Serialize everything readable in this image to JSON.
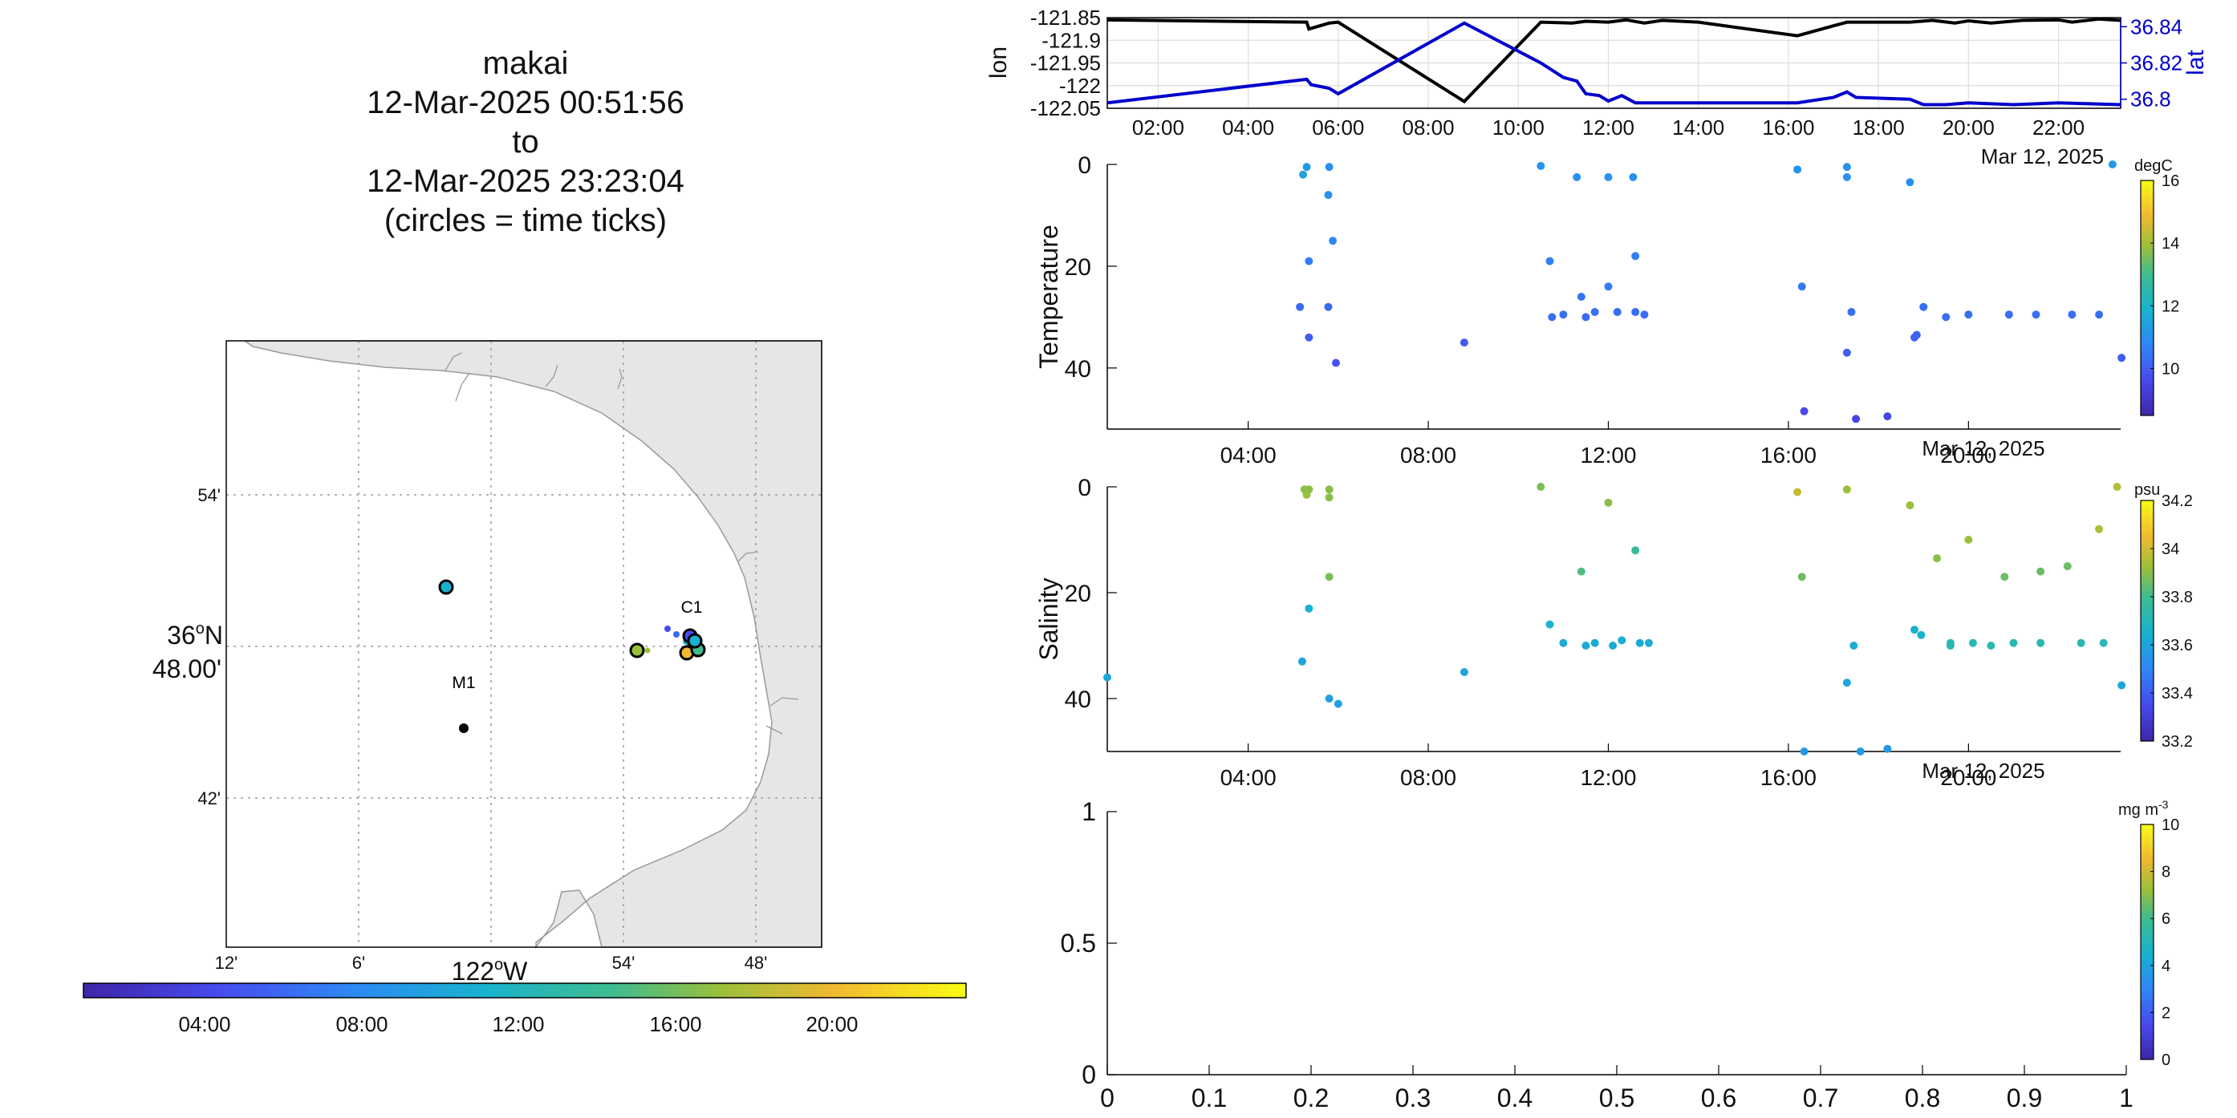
{
  "header": {
    "lines": [
      "makai",
      "12-Mar-2025 00:51:56",
      "to",
      "12-Mar-2025 23:23:04",
      "(circles = time ticks)"
    ]
  },
  "colors": {
    "lat_line": "#0000cc",
    "lon_line": "#000000",
    "land": "#e6e6e6",
    "coast": "#999999"
  },
  "map": {
    "lon_ticks": [
      "12'",
      "6'",
      "54'",
      "48'"
    ],
    "lat_ticks": [
      "54'",
      "42'"
    ],
    "lat_center_label": [
      "36",
      "o",
      "N",
      "48.00'"
    ],
    "lon_center_label": [
      "122",
      "o",
      "W"
    ],
    "station_labels": [
      "C1",
      "M1"
    ],
    "time_colorbar_ticks": [
      "04:00",
      "08:00",
      "12:00",
      "16:00",
      "20:00"
    ]
  },
  "chart_data": [
    {
      "type": "line",
      "ylabel": "lon",
      "ylabel_right": "lat",
      "x_ticks": [
        "02:00",
        "04:00",
        "06:00",
        "08:00",
        "10:00",
        "12:00",
        "14:00",
        "16:00",
        "18:00",
        "20:00",
        "22:00"
      ],
      "date_label": "Mar 12, 2025",
      "y_ticks": [
        "-121.85",
        "-121.9",
        "-121.95",
        "-122",
        "-122.05"
      ],
      "y_ticks_right": [
        "36.84",
        "36.82",
        "36.8"
      ],
      "ylim": [
        -122.05,
        -121.85
      ],
      "ylim_right": [
        36.795,
        36.845
      ],
      "series": [
        {
          "name": "lon",
          "x": [
            0.87,
            5.3,
            5.35,
            5.8,
            6.0,
            8.8,
            10.5,
            11.2,
            11.5,
            12.0,
            12.4,
            12.8,
            13.2,
            14.0,
            16.2,
            17.0,
            17.3,
            17.5,
            18.7,
            19.2,
            19.7,
            20.0,
            20.5,
            21.2,
            22.0,
            22.3,
            22.9,
            23.38
          ],
          "values": [
            -121.855,
            -121.86,
            -121.875,
            -121.862,
            -121.86,
            -122.035,
            -121.86,
            -121.862,
            -121.858,
            -121.86,
            -121.855,
            -121.862,
            -121.856,
            -121.86,
            -121.89,
            -121.868,
            -121.86,
            -121.86,
            -121.86,
            -121.856,
            -121.862,
            -121.857,
            -121.862,
            -121.856,
            -121.855,
            -121.86,
            -121.853,
            -121.856
          ]
        },
        {
          "name": "lat",
          "x": [
            0.87,
            5.3,
            5.4,
            5.8,
            6.0,
            8.8,
            10.5,
            11.0,
            11.3,
            11.5,
            11.8,
            12.0,
            12.3,
            12.6,
            12.8,
            13.2,
            16.2,
            17.0,
            17.3,
            17.5,
            18.7,
            19.0,
            19.5,
            20.0,
            21.0,
            22.0,
            23.38
          ],
          "values": [
            36.798,
            36.811,
            36.808,
            36.806,
            36.803,
            36.842,
            36.82,
            36.812,
            36.81,
            36.803,
            36.802,
            36.799,
            36.802,
            36.798,
            36.798,
            36.798,
            36.798,
            36.801,
            36.804,
            36.801,
            36.8,
            36.797,
            36.797,
            36.798,
            36.797,
            36.798,
            36.797
          ]
        }
      ]
    },
    {
      "type": "scatter",
      "ylabel": "Temperature",
      "colorbar_label": "degC",
      "colorbar_ticks": [
        "16",
        "14",
        "12",
        "10"
      ],
      "clim": [
        8.5,
        16
      ],
      "x_ticks": [
        "04:00",
        "08:00",
        "12:00",
        "16:00",
        "20:00"
      ],
      "date_label": "Mar 12, 2025",
      "y_ticks": [
        "0",
        "20",
        "40"
      ],
      "ylim": [
        52,
        0
      ],
      "points": [
        {
          "x": 5.22,
          "y": 2,
          "c": 11.5
        },
        {
          "x": 5.3,
          "y": 0.5,
          "c": 11.2
        },
        {
          "x": 5.8,
          "y": 0.5,
          "c": 11.0
        },
        {
          "x": 5.78,
          "y": 6,
          "c": 11.0
        },
        {
          "x": 5.88,
          "y": 15,
          "c": 10.8
        },
        {
          "x": 5.35,
          "y": 19,
          "c": 10.6
        },
        {
          "x": 5.15,
          "y": 28,
          "c": 10.2
        },
        {
          "x": 5.35,
          "y": 34,
          "c": 10.0
        },
        {
          "x": 5.78,
          "y": 28,
          "c": 10.2
        },
        {
          "x": 5.95,
          "y": 39,
          "c": 9.8
        },
        {
          "x": 8.8,
          "y": 35,
          "c": 9.9
        },
        {
          "x": 10.5,
          "y": 0.3,
          "c": 11.0
        },
        {
          "x": 10.7,
          "y": 19,
          "c": 10.6
        },
        {
          "x": 10.75,
          "y": 30,
          "c": 10.3
        },
        {
          "x": 11.0,
          "y": 29.5,
          "c": 10.3
        },
        {
          "x": 11.4,
          "y": 26,
          "c": 10.4
        },
        {
          "x": 11.5,
          "y": 30,
          "c": 10.2
        },
        {
          "x": 11.7,
          "y": 29,
          "c": 10.3
        },
        {
          "x": 11.3,
          "y": 2.5,
          "c": 11.0
        },
        {
          "x": 12.0,
          "y": 2.5,
          "c": 11.0
        },
        {
          "x": 12.0,
          "y": 24,
          "c": 10.5
        },
        {
          "x": 12.2,
          "y": 29,
          "c": 10.3
        },
        {
          "x": 12.55,
          "y": 2.5,
          "c": 11.0
        },
        {
          "x": 12.6,
          "y": 18,
          "c": 10.6
        },
        {
          "x": 12.6,
          "y": 29,
          "c": 10.3
        },
        {
          "x": 12.8,
          "y": 29.5,
          "c": 10.3
        },
        {
          "x": 16.2,
          "y": 1,
          "c": 11.1
        },
        {
          "x": 16.3,
          "y": 24,
          "c": 10.5
        },
        {
          "x": 16.35,
          "y": 48.5,
          "c": 9.6
        },
        {
          "x": 17.3,
          "y": 0.5,
          "c": 11.1
        },
        {
          "x": 17.3,
          "y": 2.5,
          "c": 11.0
        },
        {
          "x": 17.3,
          "y": 37,
          "c": 10.0
        },
        {
          "x": 17.4,
          "y": 29,
          "c": 10.3
        },
        {
          "x": 17.5,
          "y": 50,
          "c": 9.5
        },
        {
          "x": 18.2,
          "y": 49.5,
          "c": 9.5
        },
        {
          "x": 18.7,
          "y": 3.5,
          "c": 11.0
        },
        {
          "x": 18.8,
          "y": 34,
          "c": 10.1
        },
        {
          "x": 18.85,
          "y": 33.5,
          "c": 10.1
        },
        {
          "x": 19.0,
          "y": 28,
          "c": 10.3
        },
        {
          "x": 19.5,
          "y": 30,
          "c": 10.3
        },
        {
          "x": 20.0,
          "y": 29.5,
          "c": 10.3
        },
        {
          "x": 20.9,
          "y": 29.5,
          "c": 10.3
        },
        {
          "x": 21.5,
          "y": 29.5,
          "c": 10.3
        },
        {
          "x": 22.3,
          "y": 29.5,
          "c": 10.3
        },
        {
          "x": 22.9,
          "y": 29.5,
          "c": 10.3
        },
        {
          "x": 23.4,
          "y": 38,
          "c": 10.0
        },
        {
          "x": 23.2,
          "y": 0,
          "c": 11.2
        }
      ]
    },
    {
      "type": "scatter",
      "ylabel": "Salinity",
      "colorbar_label": "psu",
      "colorbar_ticks": [
        "34.2",
        "34",
        "33.8",
        "33.6",
        "33.4",
        "33.2"
      ],
      "clim": [
        33.2,
        34.2
      ],
      "x_ticks": [
        "04:00",
        "08:00",
        "12:00",
        "16:00",
        "20:00"
      ],
      "date_label": "Mar 12, 2025",
      "y_ticks": [
        "0",
        "20",
        "40"
      ],
      "ylim": [
        50,
        0
      ],
      "points": [
        {
          "x": 5.25,
          "y": 0.5,
          "c": 33.9
        },
        {
          "x": 5.3,
          "y": 1.5,
          "c": 33.92
        },
        {
          "x": 5.35,
          "y": 0.5,
          "c": 33.9
        },
        {
          "x": 5.8,
          "y": 0.5,
          "c": 33.9
        },
        {
          "x": 5.8,
          "y": 2,
          "c": 33.9
        },
        {
          "x": 5.8,
          "y": 17,
          "c": 33.88
        },
        {
          "x": 5.35,
          "y": 23,
          "c": 33.65
        },
        {
          "x": 5.2,
          "y": 33,
          "c": 33.6
        },
        {
          "x": 5.8,
          "y": 40,
          "c": 33.58
        },
        {
          "x": 6.0,
          "y": 41,
          "c": 33.58
        },
        {
          "x": 8.8,
          "y": 35,
          "c": 33.6
        },
        {
          "x": 10.5,
          "y": 0,
          "c": 33.88
        },
        {
          "x": 10.7,
          "y": 26,
          "c": 33.65
        },
        {
          "x": 11.0,
          "y": 29.5,
          "c": 33.63
        },
        {
          "x": 11.4,
          "y": 16,
          "c": 33.82
        },
        {
          "x": 11.5,
          "y": 30,
          "c": 33.63
        },
        {
          "x": 11.7,
          "y": 29.5,
          "c": 33.63
        },
        {
          "x": 12.0,
          "y": 3,
          "c": 33.9
        },
        {
          "x": 12.1,
          "y": 30,
          "c": 33.63
        },
        {
          "x": 12.3,
          "y": 29,
          "c": 33.64
        },
        {
          "x": 12.6,
          "y": 12,
          "c": 33.78
        },
        {
          "x": 12.7,
          "y": 29.5,
          "c": 33.63
        },
        {
          "x": 12.9,
          "y": 29.5,
          "c": 33.63
        },
        {
          "x": 16.2,
          "y": 1,
          "c": 33.98
        },
        {
          "x": 16.3,
          "y": 17,
          "c": 33.86
        },
        {
          "x": 16.35,
          "y": 50,
          "c": 33.56
        },
        {
          "x": 17.3,
          "y": 0.5,
          "c": 33.92
        },
        {
          "x": 17.3,
          "y": 37,
          "c": 33.6
        },
        {
          "x": 17.45,
          "y": 30,
          "c": 33.63
        },
        {
          "x": 17.6,
          "y": 50,
          "c": 33.56
        },
        {
          "x": 18.2,
          "y": 49.5,
          "c": 33.56
        },
        {
          "x": 18.7,
          "y": 3.5,
          "c": 33.92
        },
        {
          "x": 18.8,
          "y": 27,
          "c": 33.65
        },
        {
          "x": 18.95,
          "y": 28,
          "c": 33.65
        },
        {
          "x": 19.3,
          "y": 13.5,
          "c": 33.9
        },
        {
          "x": 19.6,
          "y": 30,
          "c": 33.72
        },
        {
          "x": 19.6,
          "y": 29.5,
          "c": 33.72
        },
        {
          "x": 20.0,
          "y": 10,
          "c": 33.92
        },
        {
          "x": 20.1,
          "y": 29.5,
          "c": 33.72
        },
        {
          "x": 20.5,
          "y": 30,
          "c": 33.72
        },
        {
          "x": 20.8,
          "y": 17,
          "c": 33.86
        },
        {
          "x": 21.0,
          "y": 29.5,
          "c": 33.72
        },
        {
          "x": 21.6,
          "y": 16,
          "c": 33.86
        },
        {
          "x": 21.6,
          "y": 29.5,
          "c": 33.72
        },
        {
          "x": 22.2,
          "y": 15,
          "c": 33.86
        },
        {
          "x": 22.5,
          "y": 29.5,
          "c": 33.72
        },
        {
          "x": 22.9,
          "y": 8,
          "c": 33.95
        },
        {
          "x": 23.0,
          "y": 29.5,
          "c": 33.72
        },
        {
          "x": 23.4,
          "y": 37.5,
          "c": 33.6
        },
        {
          "x": 23.3,
          "y": 0,
          "c": 33.96
        },
        {
          "x": 0.87,
          "y": 36,
          "c": 33.6
        }
      ]
    },
    {
      "type": "scatter",
      "colorbar_label": [
        "mg m",
        "-3"
      ],
      "colorbar_ticks": [
        "10",
        "8",
        "6",
        "4",
        "2",
        "0"
      ],
      "clim": [
        0,
        10
      ],
      "x_ticks": [
        "0",
        "0.1",
        "0.2",
        "0.3",
        "0.4",
        "0.5",
        "0.6",
        "0.7",
        "0.8",
        "0.9",
        "1"
      ],
      "y_ticks": [
        "1",
        "0.5",
        "0"
      ],
      "xlim": [
        0,
        1
      ],
      "ylim": [
        0,
        1
      ],
      "points": []
    }
  ]
}
